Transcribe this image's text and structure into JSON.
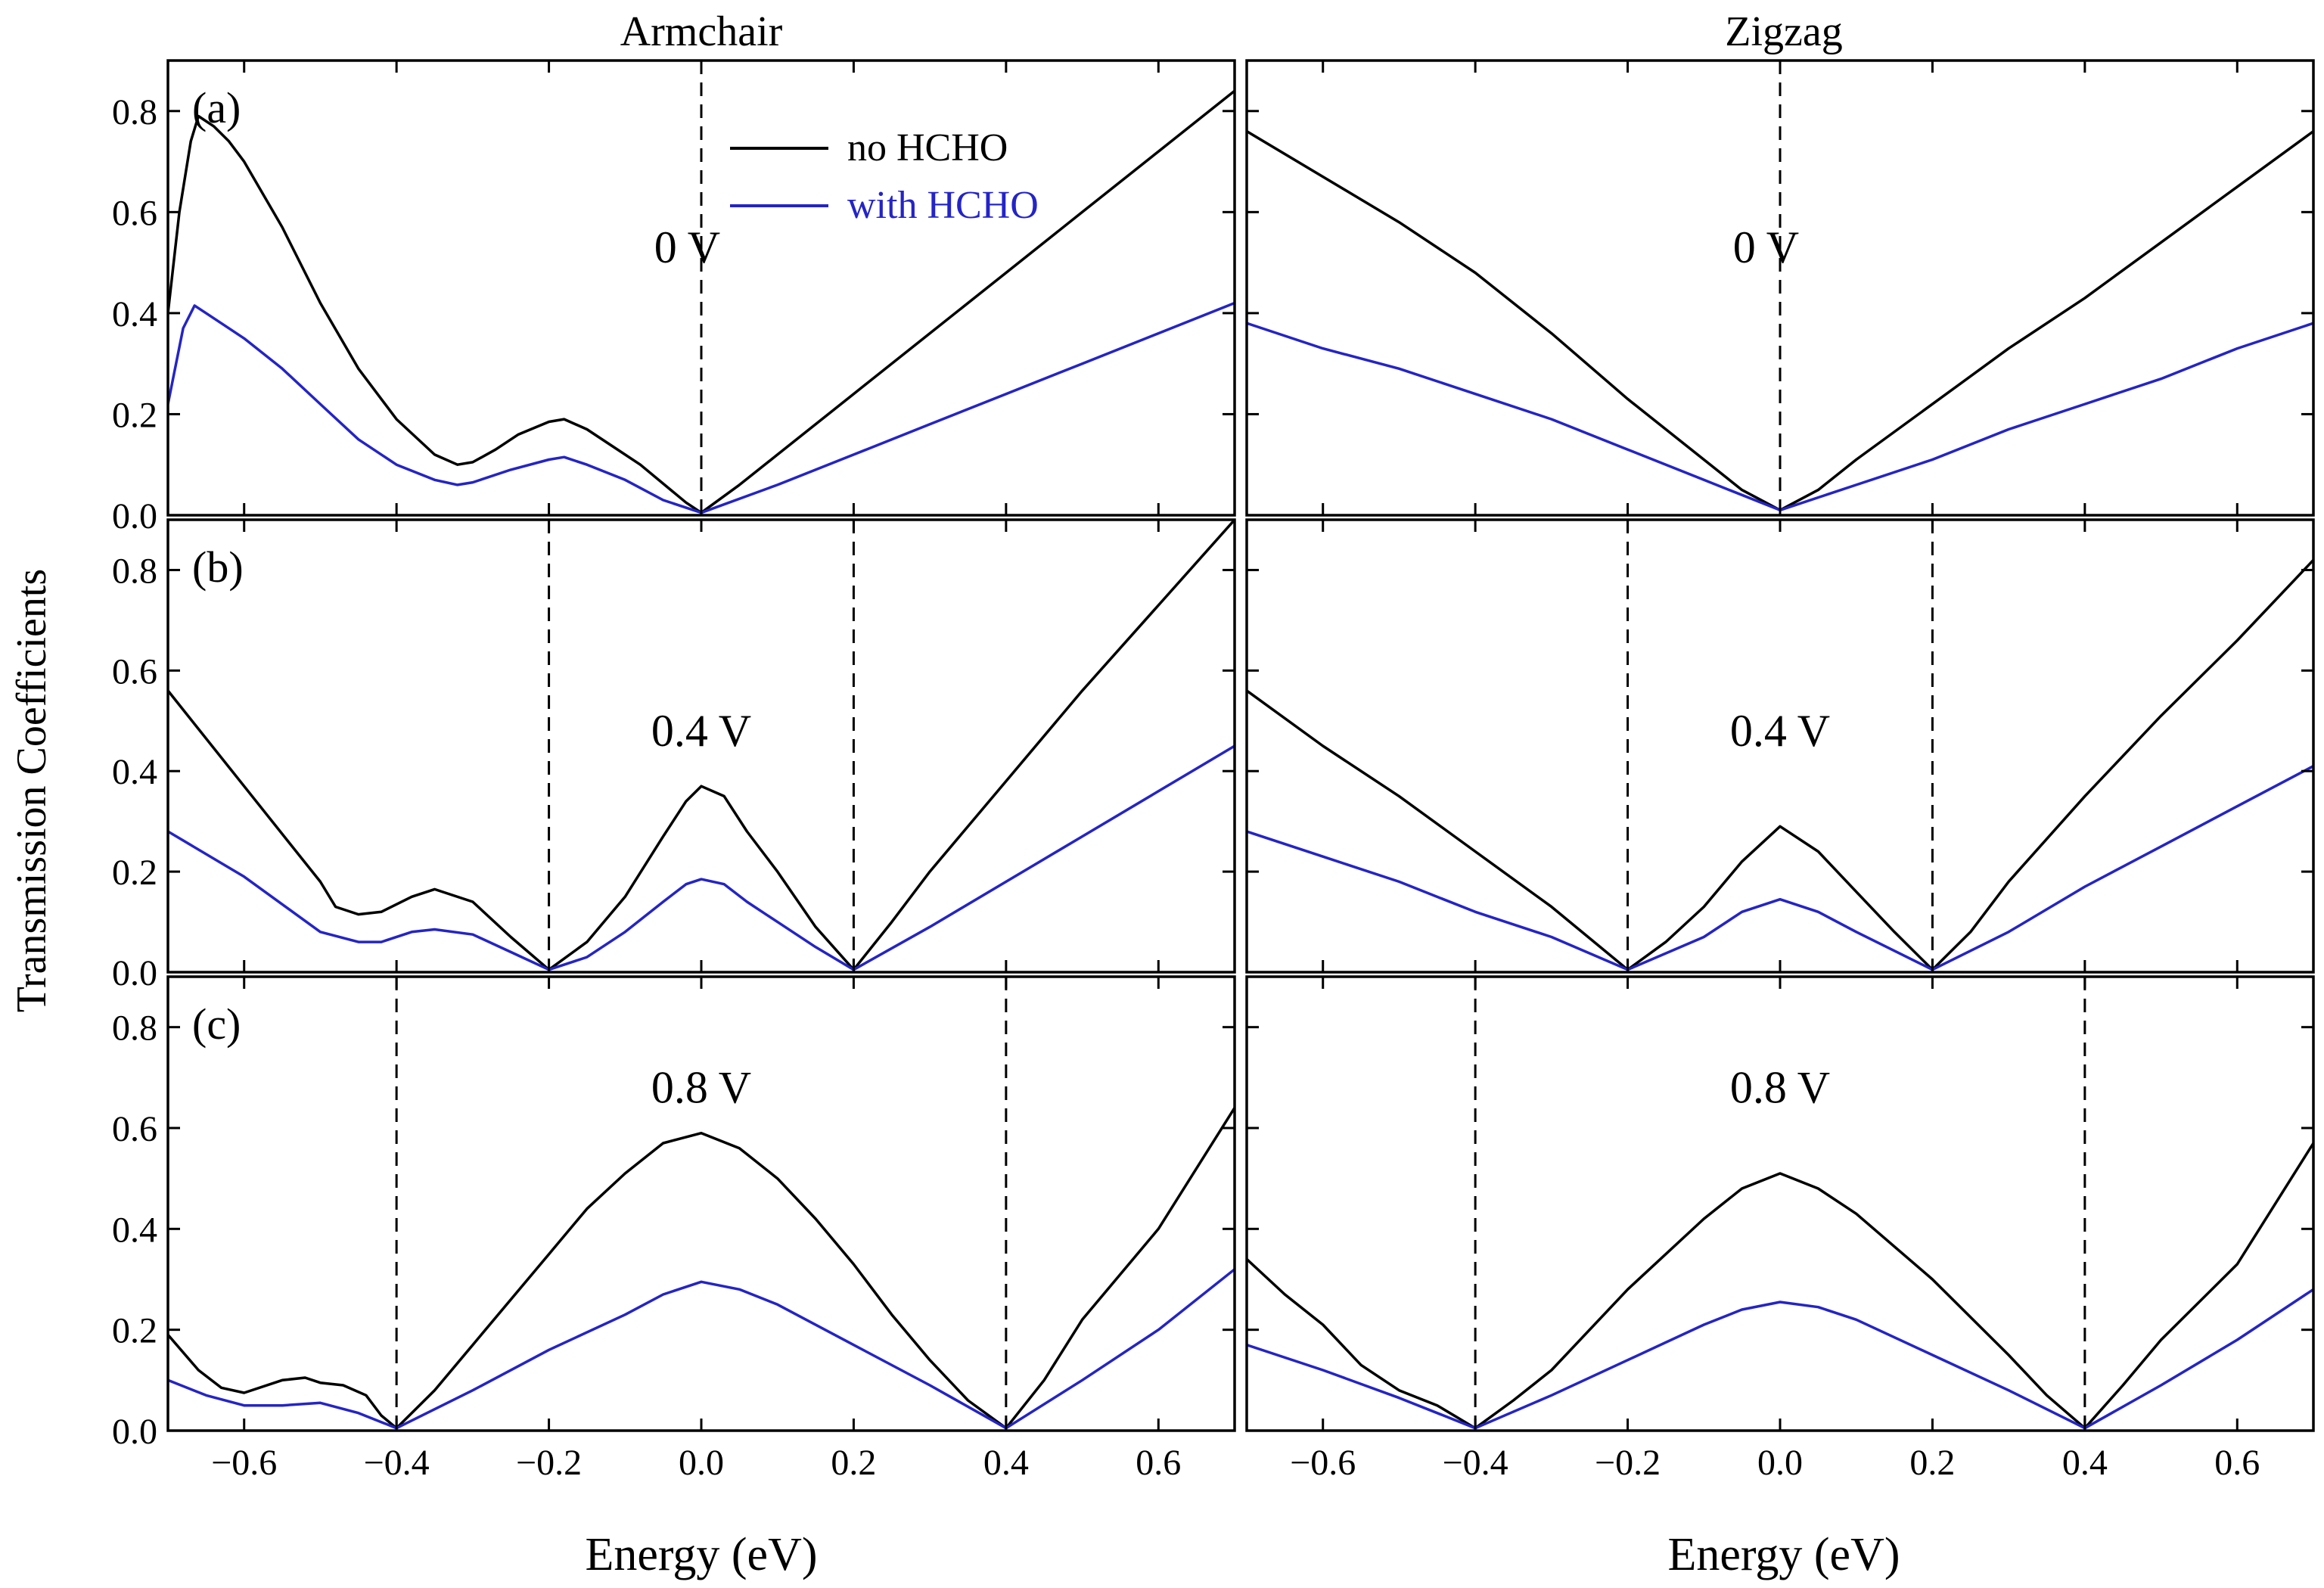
{
  "figure": {
    "ylabel": "Transmission Coefficients",
    "xlabel": "Energy (eV)",
    "columns": [
      "Armchair",
      "Zigzag"
    ],
    "x_ticks": [
      "−0.6",
      "−0.4",
      "−0.2",
      "0.0",
      "0.2",
      "0.4",
      "0.6"
    ],
    "y_ticks": [
      "0.0",
      "0.2",
      "0.4",
      "0.6",
      "0.8"
    ],
    "legend": [
      {
        "label": "no HCHO",
        "color": "#000000"
      },
      {
        "label": "with HCHO",
        "color": "#2424c8"
      }
    ]
  },
  "chart_data": [
    {
      "type": "line",
      "panel": "(a)",
      "column": "Armchair",
      "bias_label": "0 V",
      "xlim": [
        -0.7,
        0.7
      ],
      "ylim": [
        0,
        0.9
      ],
      "dashed_x": [
        0.0
      ],
      "series": [
        {
          "name": "no HCHO",
          "color": "#000000",
          "x": [
            -0.7,
            -0.685,
            -0.67,
            -0.66,
            -0.64,
            -0.62,
            -0.6,
            -0.55,
            -0.5,
            -0.45,
            -0.4,
            -0.35,
            -0.32,
            -0.3,
            -0.27,
            -0.24,
            -0.2,
            -0.18,
            -0.15,
            -0.12,
            -0.08,
            -0.04,
            -0.02,
            0.0,
            0.05,
            0.1,
            0.2,
            0.3,
            0.4,
            0.5,
            0.6,
            0.7
          ],
          "y": [
            0.4,
            0.6,
            0.74,
            0.79,
            0.77,
            0.74,
            0.7,
            0.57,
            0.42,
            0.29,
            0.19,
            0.12,
            0.1,
            0.105,
            0.13,
            0.16,
            0.185,
            0.19,
            0.17,
            0.14,
            0.1,
            0.05,
            0.025,
            0.005,
            0.06,
            0.12,
            0.24,
            0.36,
            0.48,
            0.6,
            0.72,
            0.84
          ]
        },
        {
          "name": "with HCHO",
          "color": "#2424c8",
          "x": [
            -0.7,
            -0.68,
            -0.665,
            -0.65,
            -0.62,
            -0.6,
            -0.55,
            -0.5,
            -0.45,
            -0.4,
            -0.35,
            -0.32,
            -0.3,
            -0.25,
            -0.2,
            -0.18,
            -0.15,
            -0.1,
            -0.05,
            0.0,
            0.1,
            0.2,
            0.3,
            0.4,
            0.5,
            0.6,
            0.7
          ],
          "y": [
            0.22,
            0.37,
            0.415,
            0.4,
            0.37,
            0.35,
            0.29,
            0.22,
            0.15,
            0.1,
            0.07,
            0.06,
            0.065,
            0.09,
            0.11,
            0.115,
            0.1,
            0.07,
            0.03,
            0.005,
            0.06,
            0.12,
            0.18,
            0.24,
            0.3,
            0.36,
            0.42
          ]
        }
      ]
    },
    {
      "type": "line",
      "panel": "",
      "column": "Zigzag",
      "bias_label": "0 V",
      "xlim": [
        -0.7,
        0.7
      ],
      "ylim": [
        0,
        0.9
      ],
      "dashed_x": [
        0.0
      ],
      "series": [
        {
          "name": "no HCHO",
          "color": "#000000",
          "x": [
            -0.7,
            -0.6,
            -0.5,
            -0.4,
            -0.3,
            -0.2,
            -0.1,
            -0.05,
            0.0,
            0.05,
            0.1,
            0.2,
            0.3,
            0.4,
            0.5,
            0.6,
            0.7
          ],
          "y": [
            0.76,
            0.67,
            0.58,
            0.48,
            0.36,
            0.23,
            0.11,
            0.05,
            0.01,
            0.05,
            0.11,
            0.22,
            0.33,
            0.43,
            0.54,
            0.65,
            0.76
          ]
        },
        {
          "name": "with HCHO",
          "color": "#2424c8",
          "x": [
            -0.7,
            -0.6,
            -0.5,
            -0.4,
            -0.3,
            -0.2,
            -0.1,
            0.0,
            0.1,
            0.2,
            0.3,
            0.4,
            0.5,
            0.6,
            0.7
          ],
          "y": [
            0.38,
            0.33,
            0.29,
            0.24,
            0.19,
            0.13,
            0.07,
            0.01,
            0.06,
            0.11,
            0.17,
            0.22,
            0.27,
            0.33,
            0.38
          ]
        }
      ]
    },
    {
      "type": "line",
      "panel": "(b)",
      "column": "Armchair",
      "bias_label": "0.4 V",
      "xlim": [
        -0.7,
        0.7
      ],
      "ylim": [
        0,
        0.9
      ],
      "dashed_x": [
        -0.2,
        0.2
      ],
      "series": [
        {
          "name": "no HCHO",
          "color": "#000000",
          "x": [
            -0.7,
            -0.6,
            -0.5,
            -0.48,
            -0.45,
            -0.42,
            -0.38,
            -0.35,
            -0.3,
            -0.25,
            -0.2,
            -0.15,
            -0.1,
            -0.05,
            -0.02,
            0.0,
            0.03,
            0.06,
            0.1,
            0.15,
            0.2,
            0.25,
            0.3,
            0.4,
            0.5,
            0.6,
            0.7
          ],
          "y": [
            0.56,
            0.37,
            0.18,
            0.13,
            0.115,
            0.12,
            0.15,
            0.165,
            0.14,
            0.07,
            0.005,
            0.06,
            0.15,
            0.27,
            0.34,
            0.37,
            0.35,
            0.28,
            0.2,
            0.09,
            0.005,
            0.1,
            0.2,
            0.38,
            0.56,
            0.73,
            0.9
          ]
        },
        {
          "name": "with HCHO",
          "color": "#2424c8",
          "x": [
            -0.7,
            -0.6,
            -0.5,
            -0.45,
            -0.42,
            -0.38,
            -0.35,
            -0.3,
            -0.25,
            -0.2,
            -0.15,
            -0.1,
            -0.05,
            -0.02,
            0.0,
            0.03,
            0.06,
            0.1,
            0.15,
            0.2,
            0.3,
            0.4,
            0.5,
            0.6,
            0.7
          ],
          "y": [
            0.28,
            0.19,
            0.08,
            0.06,
            0.06,
            0.08,
            0.085,
            0.075,
            0.04,
            0.005,
            0.03,
            0.08,
            0.14,
            0.175,
            0.185,
            0.175,
            0.14,
            0.1,
            0.05,
            0.005,
            0.09,
            0.18,
            0.27,
            0.36,
            0.45
          ]
        }
      ]
    },
    {
      "type": "line",
      "panel": "",
      "column": "Zigzag",
      "bias_label": "0.4 V",
      "xlim": [
        -0.7,
        0.7
      ],
      "ylim": [
        0,
        0.9
      ],
      "dashed_x": [
        -0.2,
        0.2
      ],
      "series": [
        {
          "name": "no HCHO",
          "color": "#000000",
          "x": [
            -0.7,
            -0.6,
            -0.5,
            -0.4,
            -0.3,
            -0.2,
            -0.15,
            -0.1,
            -0.05,
            0.0,
            0.05,
            0.1,
            0.15,
            0.2,
            0.25,
            0.3,
            0.4,
            0.5,
            0.6,
            0.7
          ],
          "y": [
            0.56,
            0.45,
            0.35,
            0.24,
            0.13,
            0.005,
            0.06,
            0.13,
            0.22,
            0.29,
            0.24,
            0.16,
            0.08,
            0.005,
            0.08,
            0.18,
            0.35,
            0.51,
            0.66,
            0.82
          ]
        },
        {
          "name": "with HCHO",
          "color": "#2424c8",
          "x": [
            -0.7,
            -0.6,
            -0.5,
            -0.4,
            -0.3,
            -0.2,
            -0.1,
            -0.05,
            0.0,
            0.05,
            0.1,
            0.2,
            0.3,
            0.4,
            0.5,
            0.6,
            0.7
          ],
          "y": [
            0.28,
            0.23,
            0.18,
            0.12,
            0.07,
            0.005,
            0.07,
            0.12,
            0.145,
            0.12,
            0.08,
            0.005,
            0.08,
            0.17,
            0.25,
            0.33,
            0.41
          ]
        }
      ]
    },
    {
      "type": "line",
      "panel": "(c)",
      "column": "Armchair",
      "bias_label": "0.8 V",
      "xlim": [
        -0.7,
        0.7
      ],
      "ylim": [
        0,
        0.9
      ],
      "dashed_x": [
        -0.4,
        0.4
      ],
      "series": [
        {
          "name": "no HCHO",
          "color": "#000000",
          "x": [
            -0.7,
            -0.66,
            -0.63,
            -0.6,
            -0.55,
            -0.52,
            -0.5,
            -0.47,
            -0.44,
            -0.42,
            -0.4,
            -0.35,
            -0.3,
            -0.25,
            -0.2,
            -0.15,
            -0.1,
            -0.05,
            0.0,
            0.05,
            0.1,
            0.15,
            0.2,
            0.25,
            0.3,
            0.35,
            0.4,
            0.45,
            0.5,
            0.6,
            0.7
          ],
          "y": [
            0.19,
            0.12,
            0.085,
            0.075,
            0.1,
            0.105,
            0.095,
            0.09,
            0.07,
            0.03,
            0.005,
            0.08,
            0.17,
            0.26,
            0.35,
            0.44,
            0.51,
            0.57,
            0.59,
            0.56,
            0.5,
            0.42,
            0.33,
            0.23,
            0.14,
            0.06,
            0.005,
            0.1,
            0.22,
            0.4,
            0.64
          ]
        },
        {
          "name": "with HCHO",
          "color": "#2424c8",
          "x": [
            -0.7,
            -0.65,
            -0.6,
            -0.55,
            -0.5,
            -0.45,
            -0.4,
            -0.3,
            -0.2,
            -0.1,
            -0.05,
            0.0,
            0.05,
            0.1,
            0.2,
            0.3,
            0.4,
            0.5,
            0.6,
            0.7
          ],
          "y": [
            0.1,
            0.07,
            0.05,
            0.05,
            0.055,
            0.035,
            0.005,
            0.08,
            0.16,
            0.23,
            0.27,
            0.295,
            0.28,
            0.25,
            0.17,
            0.09,
            0.005,
            0.1,
            0.2,
            0.32
          ]
        }
      ]
    },
    {
      "type": "line",
      "panel": "",
      "column": "Zigzag",
      "bias_label": "0.8 V",
      "xlim": [
        -0.7,
        0.7
      ],
      "ylim": [
        0,
        0.9
      ],
      "dashed_x": [
        -0.4,
        0.4
      ],
      "series": [
        {
          "name": "no HCHO",
          "color": "#000000",
          "x": [
            -0.7,
            -0.65,
            -0.6,
            -0.55,
            -0.5,
            -0.45,
            -0.4,
            -0.35,
            -0.3,
            -0.2,
            -0.1,
            -0.05,
            0.0,
            0.05,
            0.1,
            0.2,
            0.3,
            0.35,
            0.4,
            0.45,
            0.5,
            0.6,
            0.7
          ],
          "y": [
            0.34,
            0.27,
            0.21,
            0.13,
            0.08,
            0.05,
            0.005,
            0.06,
            0.12,
            0.28,
            0.42,
            0.48,
            0.51,
            0.48,
            0.43,
            0.3,
            0.15,
            0.07,
            0.005,
            0.09,
            0.18,
            0.33,
            0.57
          ]
        },
        {
          "name": "with HCHO",
          "color": "#2424c8",
          "x": [
            -0.7,
            -0.6,
            -0.5,
            -0.4,
            -0.3,
            -0.2,
            -0.1,
            -0.05,
            0.0,
            0.05,
            0.1,
            0.2,
            0.3,
            0.4,
            0.5,
            0.6,
            0.7
          ],
          "y": [
            0.17,
            0.12,
            0.065,
            0.005,
            0.07,
            0.14,
            0.21,
            0.24,
            0.255,
            0.245,
            0.22,
            0.15,
            0.08,
            0.005,
            0.09,
            0.18,
            0.28
          ]
        }
      ]
    }
  ]
}
